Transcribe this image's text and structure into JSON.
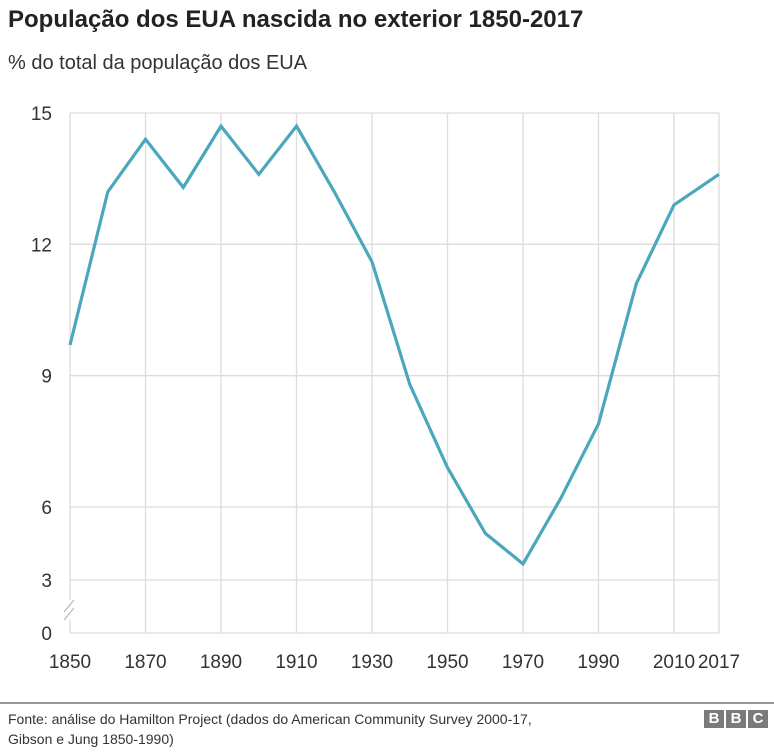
{
  "title": "População dos EUA nascida no exterior 1850-2017",
  "subtitle": "% do total da população dos EUA",
  "source": [
    "Fonte: análise do Hamilton Project (dados do American Community Survey 2000-17,",
    "Gibson e Jung 1850-1990)"
  ],
  "logo": "BBC",
  "chart_data": {
    "type": "line",
    "title": "População dos EUA nascida no exterior 1850-2017",
    "subtitle": "% do total da população dos EUA",
    "x": [
      1850,
      1860,
      1870,
      1880,
      1890,
      1900,
      1910,
      1920,
      1930,
      1940,
      1950,
      1960,
      1970,
      1980,
      1990,
      2000,
      2010,
      2017
    ],
    "values": [
      9.7,
      13.2,
      14.4,
      13.3,
      14.7,
      13.6,
      14.7,
      13.2,
      11.6,
      8.8,
      6.9,
      5.4,
      4.7,
      6.2,
      7.9,
      11.1,
      12.9,
      13.6
    ],
    "x_ticks": [
      "1850",
      "1870",
      "1890",
      "1910",
      "1930",
      "1950",
      "1970",
      "1990",
      "2010",
      "2017"
    ],
    "y_ticks": [
      "15",
      "12",
      "9",
      "6",
      "3",
      "0"
    ],
    "ylim": [
      0,
      15
    ],
    "y_axis_break": true,
    "grid": true,
    "line_color": "#4aa7bc",
    "grid_color": "#dcdcdc"
  }
}
